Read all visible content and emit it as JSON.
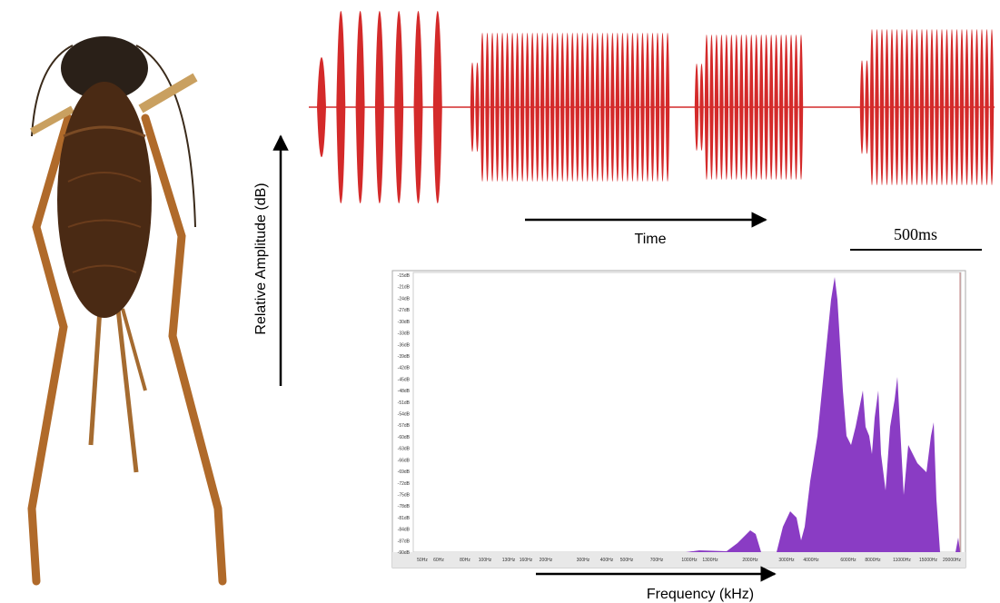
{
  "amplitude_axis_label": "Relative Amplitude (dB)",
  "time_label": "Time",
  "scale_bar_label": "500ms",
  "frequency_label": "Frequency (kHz)",
  "spectrum": {
    "y_tick_labels": [
      "-15dB",
      "-21dB",
      "-24dB",
      "-27dB",
      "-30dB",
      "-33dB",
      "-36dB",
      "-39dB",
      "-42dB",
      "-45dB",
      "-48dB",
      "-51dB",
      "-54dB",
      "-57dB",
      "-60dB",
      "-63dB",
      "-66dB",
      "-69dB",
      "-72dB",
      "-75dB",
      "-78dB",
      "-81dB",
      "-84dB",
      "-87dB",
      "-90dB"
    ],
    "x_tick_labels": [
      "50Hz",
      "60Hz",
      "80Hz",
      "100Hz",
      "130Hz",
      "160Hz",
      "200Hz",
      "300Hz",
      "400Hz",
      "500Hz",
      "700Hz",
      "1000Hz",
      "1300Hz",
      "2000Hz",
      "3000Hz",
      "4000Hz",
      "6000Hz",
      "8000Hz",
      "11000Hz",
      "15000Hz",
      "20000Hz"
    ]
  }
}
